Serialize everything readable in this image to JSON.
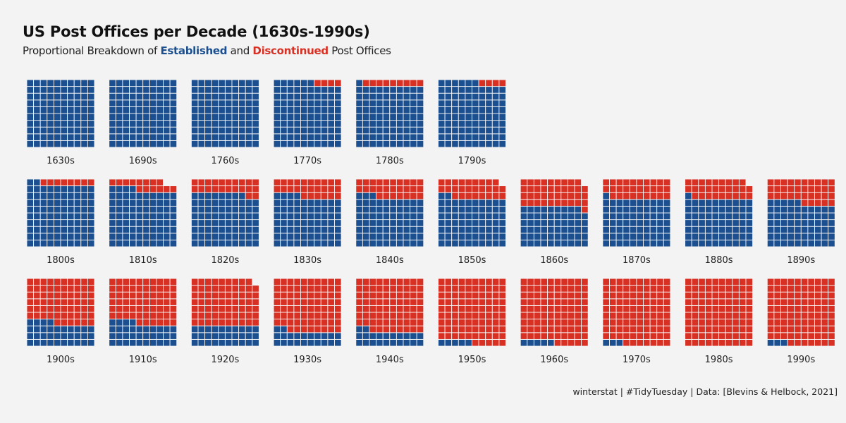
{
  "title": "US Post Offices per Decade (1630s-1990s)",
  "subtitle": {
    "prefix": "Proportional Breakdown of ",
    "established": "Established",
    "middle": " and ",
    "discontinued": "Discontinued",
    "suffix": " Post Offices"
  },
  "caption": "winterstat | #TidyTuesday | Data: [Blevins & Helbock, 2021]",
  "colors": {
    "established": "#1b4f8f",
    "discontinued": "#d93024",
    "background": "#f3f3f3"
  },
  "chart_data": {
    "type": "waffle",
    "cells_per_panel": 100,
    "grid": "10x10",
    "series": [
      {
        "name": "Established",
        "color": "#1b4f8f"
      },
      {
        "name": "Discontinued",
        "color": "#d93024"
      }
    ],
    "panels": [
      {
        "label": "1630s",
        "established": 100,
        "discontinued": 0
      },
      {
        "label": "1690s",
        "established": 100,
        "discontinued": 0
      },
      {
        "label": "1760s",
        "established": 100,
        "discontinued": 0
      },
      {
        "label": "1770s",
        "established": 96,
        "discontinued": 4
      },
      {
        "label": "1780s",
        "established": 91,
        "discontinued": 9
      },
      {
        "label": "1790s",
        "established": 96,
        "discontinued": 4
      },
      {
        "label": "1800s",
        "established": 92,
        "discontinued": 8
      },
      {
        "label": "1810s",
        "established": 84,
        "discontinued": 14
      },
      {
        "label": "1820s",
        "established": 78,
        "discontinued": 22
      },
      {
        "label": "1830s",
        "established": 74,
        "discontinued": 26
      },
      {
        "label": "1840s",
        "established": 73,
        "discontinued": 27
      },
      {
        "label": "1850s",
        "established": 72,
        "discontinued": 27
      },
      {
        "label": "1860s",
        "established": 59,
        "discontinued": 40
      },
      {
        "label": "1870s",
        "established": 71,
        "discontinued": 29
      },
      {
        "label": "1880s",
        "established": 71,
        "discontinued": 28
      },
      {
        "label": "1890s",
        "established": 65,
        "discontinued": 35
      },
      {
        "label": "1900s",
        "established": 34,
        "discontinued": 66
      },
      {
        "label": "1910s",
        "established": 34,
        "discontinued": 66
      },
      {
        "label": "1920s",
        "established": 30,
        "discontinued": 69
      },
      {
        "label": "1930s",
        "established": 22,
        "discontinued": 78
      },
      {
        "label": "1940s",
        "established": 22,
        "discontinued": 78
      },
      {
        "label": "1950s",
        "established": 5,
        "discontinued": 95
      },
      {
        "label": "1960s",
        "established": 5,
        "discontinued": 95
      },
      {
        "label": "1970s",
        "established": 3,
        "discontinued": 97
      },
      {
        "label": "1980s",
        "established": 0,
        "discontinued": 100
      },
      {
        "label": "1990s",
        "established": 3,
        "discontinued": 97
      }
    ]
  }
}
